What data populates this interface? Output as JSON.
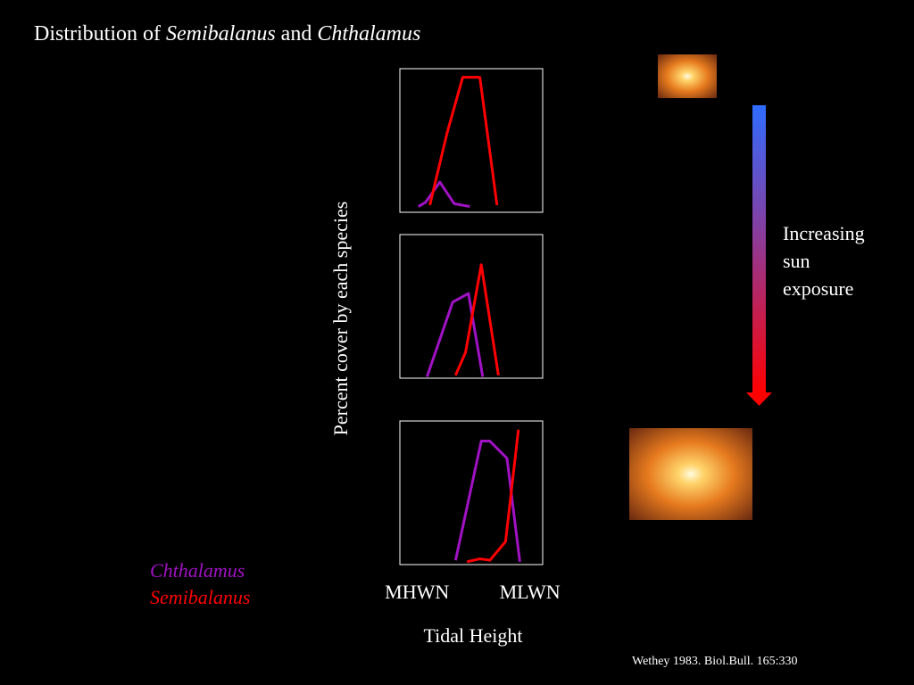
{
  "slide": {
    "title": [
      {
        "text": "Distribution of",
        "italic": false
      },
      {
        "text": "Semibalanus",
        "italic": true
      },
      {
        "text": "and",
        "italic": false
      },
      {
        "text": "Chthalamus",
        "italic": true
      }
    ],
    "annotation": [
      "Increasing",
      "sun",
      "exposure"
    ],
    "citation": "Wethey 1983. Biol.Bull. 165:330"
  },
  "chart_data": [
    {
      "type": "line",
      "xlim": [
        0,
        100
      ],
      "ylim": [
        0,
        100
      ],
      "series": [
        {
          "name": "Chthalamus",
          "color": "#a012c4",
          "x": [
            13,
            18,
            28,
            38,
            49
          ],
          "values": [
            4,
            7,
            21,
            6,
            4
          ]
        },
        {
          "name": "Semibalanus",
          "color": "#ff0000",
          "x": [
            21,
            33,
            44,
            56,
            68
          ],
          "values": [
            5,
            55,
            94,
            94,
            5
          ]
        }
      ]
    },
    {
      "type": "line",
      "xlim": [
        0,
        100
      ],
      "ylim": [
        0,
        100
      ],
      "ylabel": "Percent cover by each species",
      "series": [
        {
          "name": "Chthalamus",
          "color": "#a012c4",
          "x": [
            19,
            37,
            48,
            58
          ],
          "values": [
            1,
            53,
            59,
            1
          ]
        },
        {
          "name": "Semibalanus",
          "color": "#ff0000",
          "x": [
            39,
            46,
            57,
            69
          ],
          "values": [
            2,
            18,
            79,
            2
          ]
        }
      ]
    },
    {
      "type": "line",
      "xlim": [
        0,
        100
      ],
      "ylim": [
        0,
        100
      ],
      "xlabel": "Tidal Height",
      "xticks": [
        {
          "value": 12,
          "label": "MHWN"
        },
        {
          "value": 91,
          "label": "MLWN"
        }
      ],
      "series": [
        {
          "name": "Chthalamus",
          "color": "#a012c4",
          "x": [
            39,
            57,
            63,
            75,
            84
          ],
          "values": [
            3,
            86,
            86,
            74,
            2
          ]
        },
        {
          "name": "Semibalanus",
          "color": "#ff0000",
          "x": [
            47,
            56,
            63,
            74,
            83
          ],
          "values": [
            2,
            4,
            3,
            16,
            94
          ]
        }
      ]
    }
  ]
}
